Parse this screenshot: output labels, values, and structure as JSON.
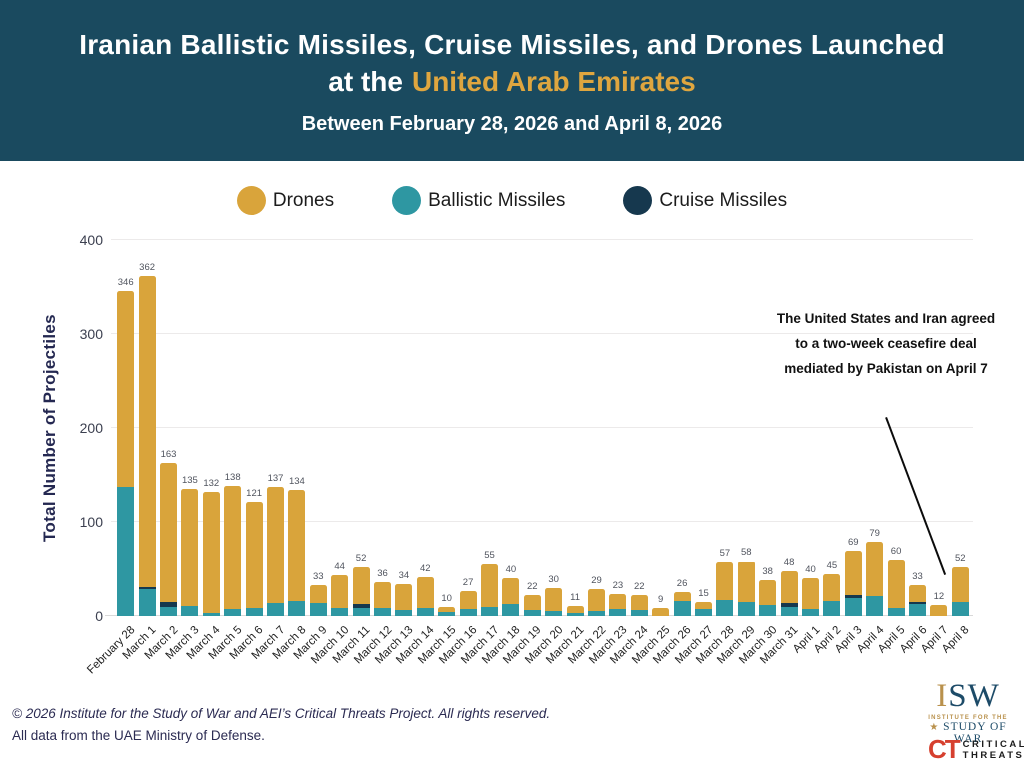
{
  "header": {
    "title_line1": "Iranian Ballistic Missiles, Cruise Missiles, and Drones Launched",
    "title_line2_prefix": "at the",
    "title_line2_highlight": "United Arab Emirates",
    "subtitle": "Between February 28, 2026 and April 8, 2026"
  },
  "legend": {
    "items": [
      {
        "label": "Drones",
        "color": "#D9A43B"
      },
      {
        "label": "Ballistic Missiles",
        "color": "#2E97A2"
      },
      {
        "label": "Cruise Missiles",
        "color": "#16384E"
      }
    ]
  },
  "chart_data": {
    "type": "bar",
    "stacked": true,
    "title": "Iranian Ballistic Missiles, Cruise Missiles, and Drones Launched at the United Arab Emirates Between February 28, 2026 and April 8, 2026",
    "xlabel": "",
    "ylabel": "Total Number of Projectiles",
    "ylim": [
      0,
      400
    ],
    "yticks": [
      0,
      100,
      200,
      300,
      400
    ],
    "grid": true,
    "legend_position": "top",
    "categories": [
      "February 28",
      "March 1",
      "March 2",
      "March 3",
      "March 4",
      "March 5",
      "March 6",
      "March 7",
      "March 8",
      "March 9",
      "March 10",
      "March 11",
      "March 12",
      "March 13",
      "March 14",
      "March 15",
      "March 16",
      "March 17",
      "March 18",
      "March 19",
      "March 20",
      "March 21",
      "March 22",
      "March 23",
      "March 24",
      "March 25",
      "March 26",
      "March 27",
      "March 28",
      "March 29",
      "March 30",
      "March 31",
      "April 1",
      "April 2",
      "April 3",
      "April 4",
      "April 5",
      "April 6",
      "April 7",
      "April 8"
    ],
    "totals": [
      346,
      362,
      163,
      135,
      132,
      138,
      121,
      137,
      134,
      33,
      44,
      52,
      36,
      34,
      42,
      10,
      27,
      55,
      40,
      22,
      30,
      11,
      29,
      23,
      22,
      9,
      26,
      15,
      57,
      58,
      38,
      48,
      40,
      45,
      69,
      79,
      60,
      33,
      12,
      52
    ],
    "series": [
      {
        "name": "Ballistic Missiles",
        "color": "#2E97A2",
        "values": [
          137,
          29,
          10,
          11,
          3,
          7,
          9,
          14,
          16,
          14,
          8,
          9,
          9,
          6,
          9,
          4,
          7,
          10,
          13,
          6,
          5,
          3,
          5,
          7,
          6,
          0,
          16,
          7,
          17,
          15,
          12,
          10,
          7,
          16,
          19,
          21,
          9,
          13,
          0,
          15
        ]
      },
      {
        "name": "Cruise Missiles",
        "color": "#16384E",
        "values": [
          0,
          2,
          5,
          0,
          0,
          0,
          0,
          0,
          0,
          0,
          0,
          4,
          0,
          0,
          0,
          0,
          0,
          0,
          0,
          0,
          0,
          0,
          0,
          0,
          0,
          0,
          0,
          0,
          0,
          0,
          0,
          4,
          0,
          0,
          3,
          0,
          0,
          2,
          0,
          0
        ]
      },
      {
        "name": "Drones",
        "color": "#D9A43B",
        "values": [
          209,
          331,
          148,
          124,
          129,
          131,
          112,
          123,
          118,
          19,
          36,
          39,
          27,
          28,
          33,
          6,
          20,
          45,
          27,
          16,
          25,
          8,
          24,
          16,
          16,
          9,
          10,
          8,
          40,
          43,
          26,
          34,
          33,
          29,
          47,
          58,
          51,
          18,
          12,
          37
        ]
      }
    ]
  },
  "annotation": {
    "text": "The United States and Iran agreed to a two-week ceasefire deal mediated by Pakistan on April 7"
  },
  "footer": {
    "line1": "© 2026 Institute for the Study of War and AEI’s Critical Threats Project. All rights reserved.",
    "line2": "All data from the UAE Ministry of Defense."
  },
  "logos": {
    "isw": {
      "acronym_i": "I",
      "acronym_sw": "SW",
      "star": "★",
      "sub_top": "INSTITUTE FOR THE",
      "sub_bottom": "STUDY OF WAR"
    },
    "ct": {
      "mark": "CT",
      "line1": "CRITICAL",
      "line2": "THREATS"
    }
  }
}
